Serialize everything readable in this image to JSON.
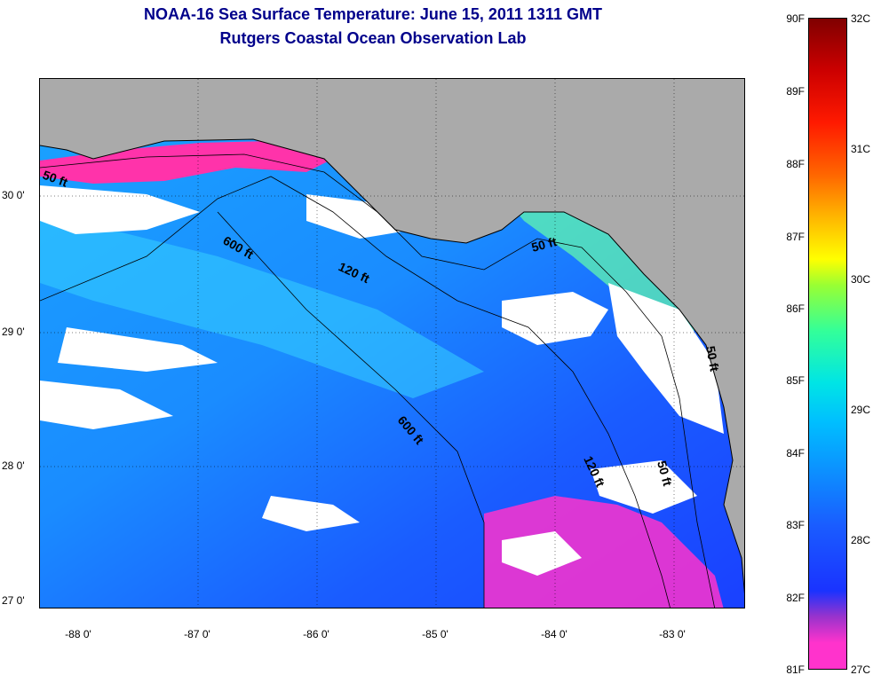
{
  "title": "NOAA-16 Sea Surface Temperature:  June 15, 2011 1311 GMT",
  "subtitle": "Rutgers Coastal Ocean Observation Lab",
  "map": {
    "lat_labels": [
      "30 0'",
      "29 0'",
      "28 0'",
      "27 0'"
    ],
    "lon_labels": [
      "-88 0'",
      "-87 0'",
      "-86 0'",
      "-85 0'",
      "-84 0'",
      "-83 0'"
    ],
    "contour_labels": [
      "50 ft",
      "600 ft",
      "120 ft",
      "50 ft",
      "600 ft",
      "120 ft",
      "50 ft",
      "50 ft"
    ],
    "colors": {
      "land": "#aaaaaa",
      "cloud": "#ffffff",
      "warm_band": "#ff33aa"
    }
  },
  "colorbar": {
    "fahrenheit": [
      "90F",
      "89F",
      "88F",
      "87F",
      "86F",
      "85F",
      "84F",
      "83F",
      "82F",
      "81F"
    ],
    "celsius": [
      "32C",
      "31C",
      "30C",
      "29C",
      "28C",
      "27C"
    ]
  }
}
